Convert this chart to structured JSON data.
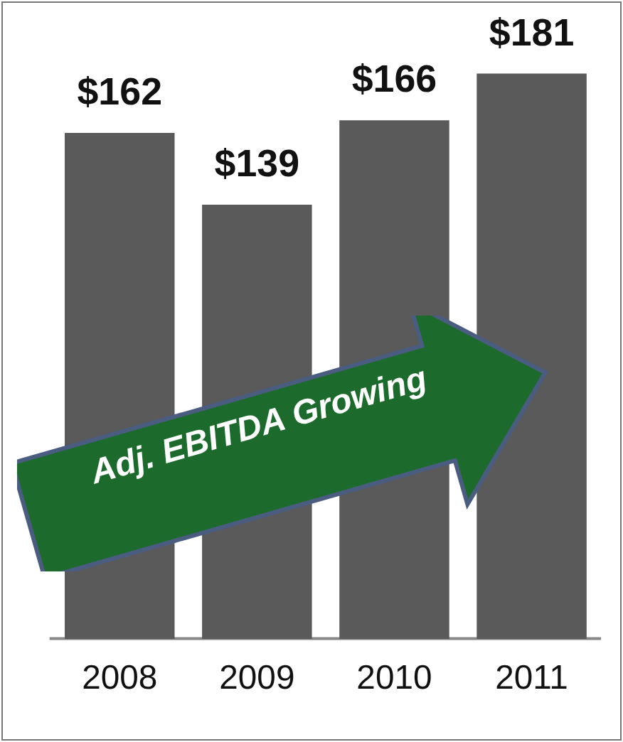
{
  "chart_data": {
    "type": "bar",
    "categories": [
      "2008",
      "2009",
      "2010",
      "2011"
    ],
    "values": [
      162,
      139,
      166,
      181
    ],
    "value_labels": [
      "$162",
      "$139",
      "$166",
      "$181"
    ],
    "color": "#5a5a5a",
    "grid": false,
    "legend": false,
    "annotations": [
      "Adj. EBITDA Growing"
    ]
  }
}
